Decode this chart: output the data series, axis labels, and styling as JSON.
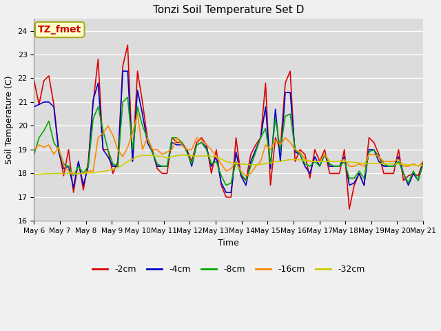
{
  "title": "Tonzi Soil Temperature Set D",
  "xlabel": "Time",
  "ylabel": "Soil Temperature (C)",
  "ylim": [
    16.0,
    24.5
  ],
  "yticks": [
    16.0,
    17.0,
    18.0,
    19.0,
    20.0,
    21.0,
    22.0,
    23.0,
    24.0
  ],
  "annotation_text": "TZ_fmet",
  "annotation_bg": "#ffffcc",
  "annotation_border": "#aaa820",
  "annotation_text_color": "#cc0000",
  "legend_labels": [
    "-2cm",
    "-4cm",
    "-8cm",
    "-16cm",
    "-32cm"
  ],
  "line_colors": [
    "#dd0000",
    "#0000cc",
    "#00aa00",
    "#ff8800",
    "#cccc00"
  ],
  "fig_bg": "#f0f0f0",
  "axes_bg": "#dcdcdc",
  "grid_color": "#ffffff",
  "x_tick_labels": [
    "May 6",
    "May 7",
    "May 8",
    "May 9",
    "May 10",
    "May 11",
    "May 12",
    "May 13",
    "May 14",
    "May 15",
    "May 16",
    "May 17",
    "May 18",
    "May 19",
    "May 20",
    "May 21"
  ],
  "series": {
    "neg2cm": [
      21.9,
      20.9,
      21.9,
      22.1,
      20.9,
      19.0,
      17.9,
      19.0,
      17.2,
      18.5,
      17.3,
      18.5,
      21.0,
      22.8,
      19.0,
      19.0,
      18.0,
      18.5,
      22.5,
      23.4,
      18.5,
      22.3,
      21.0,
      19.5,
      19.0,
      18.2,
      18.0,
      18.0,
      19.5,
      19.3,
      19.3,
      19.0,
      18.5,
      19.3,
      19.5,
      19.2,
      18.0,
      19.0,
      17.5,
      17.0,
      17.0,
      19.5,
      17.9,
      17.7,
      18.8,
      19.2,
      19.5,
      21.8,
      17.5,
      19.5,
      19.0,
      21.8,
      22.3,
      18.5,
      19.0,
      18.8,
      17.8,
      19.0,
      18.5,
      19.0,
      18.0,
      18.0,
      18.0,
      19.0,
      16.5,
      17.5,
      18.0,
      17.5,
      19.5,
      19.3,
      18.8,
      18.0,
      18.0,
      18.0,
      19.0,
      17.7,
      17.9,
      18.0,
      17.9,
      18.5
    ],
    "neg4cm": [
      20.8,
      20.9,
      21.0,
      21.0,
      20.8,
      18.9,
      18.2,
      18.3,
      17.4,
      18.5,
      17.5,
      18.3,
      21.1,
      21.8,
      19.0,
      18.7,
      18.3,
      18.3,
      22.3,
      22.3,
      18.5,
      21.5,
      20.5,
      19.3,
      18.9,
      18.3,
      18.3,
      18.3,
      19.3,
      19.2,
      19.2,
      19.0,
      18.3,
      19.2,
      19.3,
      19.1,
      18.3,
      18.7,
      17.6,
      17.2,
      17.2,
      18.9,
      17.9,
      17.5,
      18.5,
      19.0,
      19.5,
      20.8,
      18.2,
      20.7,
      18.5,
      21.4,
      21.4,
      18.9,
      18.8,
      18.3,
      18.0,
      18.7,
      18.3,
      18.8,
      18.3,
      18.3,
      18.3,
      18.7,
      17.5,
      17.6,
      18.0,
      17.5,
      19.0,
      19.0,
      18.5,
      18.3,
      18.3,
      18.3,
      18.7,
      18.0,
      17.5,
      18.0,
      17.7,
      18.5
    ],
    "neg8cm": [
      18.8,
      19.5,
      19.8,
      20.2,
      19.3,
      19.0,
      18.4,
      18.3,
      17.9,
      18.3,
      18.0,
      18.3,
      20.3,
      20.8,
      19.8,
      19.0,
      18.4,
      18.3,
      21.0,
      21.2,
      19.0,
      20.8,
      20.0,
      19.5,
      18.9,
      18.4,
      18.3,
      18.3,
      19.5,
      19.5,
      19.3,
      18.9,
      18.4,
      19.2,
      19.3,
      19.0,
      18.4,
      18.5,
      17.9,
      17.5,
      17.6,
      18.5,
      18.0,
      17.7,
      18.3,
      18.9,
      19.5,
      19.9,
      18.4,
      20.3,
      19.0,
      20.4,
      20.5,
      19.0,
      18.8,
      18.4,
      18.3,
      18.5,
      18.3,
      18.8,
      18.4,
      18.3,
      18.3,
      18.5,
      17.8,
      17.8,
      18.1,
      17.8,
      18.9,
      19.0,
      18.7,
      18.4,
      18.3,
      18.3,
      18.5,
      18.0,
      17.6,
      18.1,
      17.7,
      18.4
    ],
    "neg16cm": [
      19.0,
      19.2,
      19.1,
      19.2,
      18.8,
      19.1,
      18.3,
      18.1,
      18.0,
      18.0,
      18.0,
      18.1,
      18.1,
      19.5,
      19.7,
      20.0,
      19.6,
      19.0,
      18.7,
      19.1,
      19.7,
      20.5,
      19.0,
      19.5,
      19.0,
      19.0,
      18.8,
      18.9,
      19.0,
      19.5,
      19.2,
      19.0,
      19.0,
      19.5,
      19.4,
      19.2,
      19.0,
      18.7,
      18.4,
      18.1,
      18.2,
      18.5,
      18.1,
      17.9,
      18.0,
      18.3,
      18.5,
      19.2,
      19.0,
      19.4,
      19.2,
      19.5,
      19.3,
      19.0,
      18.9,
      18.6,
      18.5,
      18.5,
      18.5,
      18.8,
      18.5,
      18.5,
      18.5,
      18.6,
      18.3,
      18.3,
      18.4,
      18.3,
      18.8,
      18.8,
      18.7,
      18.5,
      18.5,
      18.5,
      18.6,
      18.3,
      18.3,
      18.4,
      18.3,
      18.5
    ],
    "neg32cm": [
      17.95,
      17.97,
      17.98,
      17.99,
      18.0,
      18.0,
      18.0,
      18.0,
      17.98,
      17.98,
      18.0,
      18.02,
      18.02,
      18.05,
      18.08,
      18.12,
      18.18,
      18.25,
      18.35,
      18.5,
      18.6,
      18.72,
      18.75,
      18.76,
      18.75,
      18.73,
      18.7,
      18.65,
      18.7,
      18.75,
      18.78,
      18.76,
      18.74,
      18.73,
      18.74,
      18.73,
      18.72,
      18.7,
      18.6,
      18.5,
      18.45,
      18.43,
      18.4,
      18.38,
      18.36,
      18.36,
      18.38,
      18.42,
      18.44,
      18.5,
      18.5,
      18.55,
      18.58,
      18.58,
      18.57,
      18.55,
      18.52,
      18.5,
      18.5,
      18.5,
      18.5,
      18.5,
      18.5,
      18.5,
      18.48,
      18.46,
      18.44,
      18.42,
      18.42,
      18.42,
      18.42,
      18.4,
      18.4,
      18.4,
      18.4,
      18.38,
      18.36,
      18.35,
      18.33,
      18.32
    ]
  },
  "n_points": 80
}
